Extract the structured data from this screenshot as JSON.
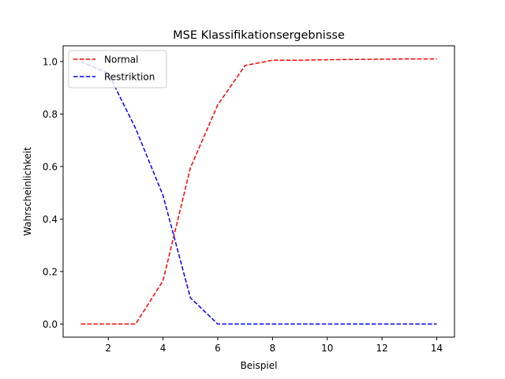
{
  "chart_data": {
    "type": "line",
    "title": "MSE Klassifikationsergebnisse",
    "xlabel": "Beispiel",
    "ylabel": "Wahrscheinlichkeit",
    "xlim": [
      0.35,
      14.65
    ],
    "ylim": [
      -0.05,
      1.06
    ],
    "xticks": [
      2,
      4,
      6,
      8,
      10,
      12,
      14
    ],
    "yticks": [
      0.0,
      0.2,
      0.4,
      0.6,
      0.8,
      1.0
    ],
    "ytick_labels": [
      "0.0",
      "0.2",
      "0.4",
      "0.6",
      "0.8",
      "1.0"
    ],
    "grid": false,
    "legend_position": "top-left",
    "series": [
      {
        "name": "Normal",
        "color": "#ff0000",
        "style": "dashed",
        "x": [
          1,
          2,
          3,
          4,
          5,
          6,
          7,
          8,
          9,
          10,
          11,
          12,
          13,
          14
        ],
        "y": [
          0.0,
          0.0,
          0.0,
          0.165,
          0.595,
          0.835,
          0.985,
          1.005,
          1.005,
          1.007,
          1.008,
          1.009,
          1.01,
          1.01
        ]
      },
      {
        "name": "Restriktion",
        "color": "#0000ff",
        "style": "dashed",
        "x": [
          1,
          2,
          3,
          4,
          5,
          6,
          7,
          8,
          9,
          10,
          11,
          12,
          13,
          14
        ],
        "y": [
          1.0,
          0.955,
          0.745,
          0.49,
          0.1,
          0.0,
          0.0,
          0.0,
          0.0,
          0.0,
          0.0,
          0.0,
          0.0,
          0.0
        ]
      }
    ]
  }
}
